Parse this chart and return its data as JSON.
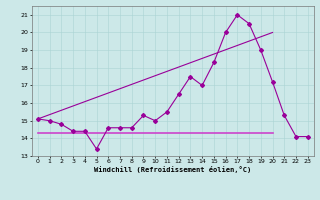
{
  "title": "",
  "xlabel": "Windchill (Refroidissement éolien,°C)",
  "bg_color": "#cce8e8",
  "line_color": "#990099",
  "flat_line_color": "#cc44cc",
  "xlim": [
    -0.5,
    23.5
  ],
  "ylim": [
    13,
    21.5
  ],
  "yticks": [
    13,
    14,
    15,
    16,
    17,
    18,
    19,
    20,
    21
  ],
  "xticks": [
    0,
    1,
    2,
    3,
    4,
    5,
    6,
    7,
    8,
    9,
    10,
    11,
    12,
    13,
    14,
    15,
    16,
    17,
    18,
    19,
    20,
    21,
    22,
    23
  ],
  "series1_x": [
    0,
    1,
    2,
    3,
    4,
    5,
    6,
    7,
    8,
    9,
    10,
    11,
    12,
    13,
    14,
    15,
    16,
    17,
    18,
    19,
    20,
    21,
    22,
    23
  ],
  "series1_y": [
    15.1,
    15.0,
    14.8,
    14.4,
    14.4,
    13.4,
    14.6,
    14.6,
    14.6,
    15.3,
    15.0,
    15.5,
    16.5,
    17.5,
    17.0,
    18.3,
    20.0,
    21.0,
    20.5,
    19.0,
    17.2,
    15.3,
    14.1,
    14.1
  ],
  "series2_x": [
    0,
    20
  ],
  "series2_y": [
    15.1,
    20.0
  ],
  "series3_x": [
    0,
    20
  ],
  "series3_y": [
    14.3,
    14.3
  ]
}
